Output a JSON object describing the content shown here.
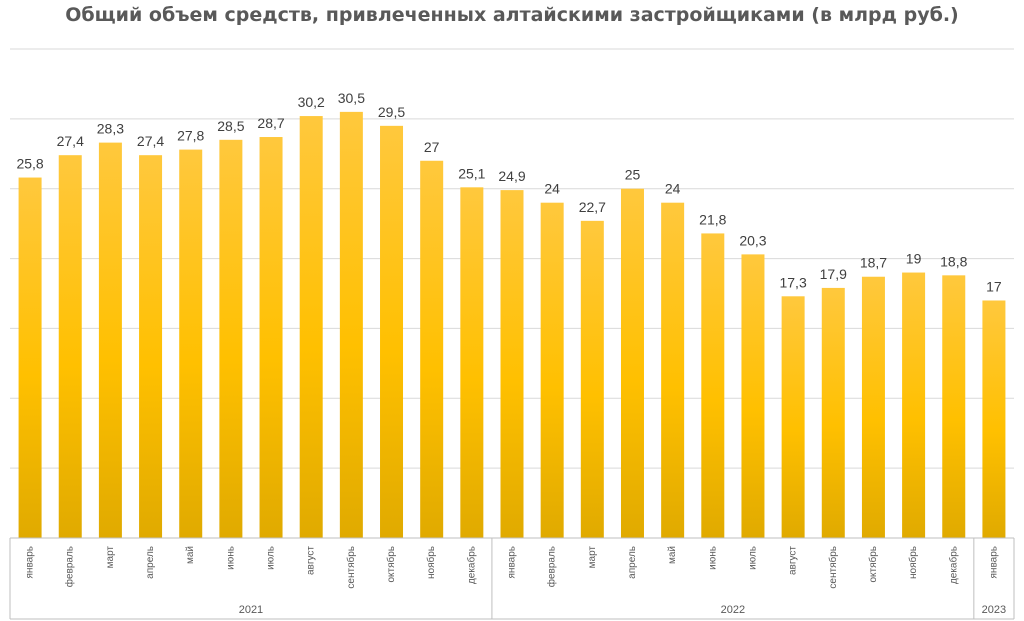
{
  "chart_data": {
    "type": "bar",
    "title": "Общий объем средств, привлеченных алтайскими застройщиками (в млрд руб.)",
    "xlabel": "",
    "ylabel": "",
    "ylim": [
      0,
      35
    ],
    "grid": true,
    "legend": "none",
    "bar_color": "#FFC000",
    "categories": [
      "январь",
      "февраль",
      "март",
      "апрель",
      "май",
      "июнь",
      "июль",
      "август",
      "сентябрь",
      "октябрь",
      "ноябрь",
      "декабрь",
      "январь",
      "февраль",
      "март",
      "апрель",
      "май",
      "июнь",
      "июль",
      "август",
      "сентябрь",
      "октябрь",
      "ноябрь",
      "декабрь",
      "январь"
    ],
    "values": [
      25.8,
      27.4,
      28.3,
      27.4,
      27.8,
      28.5,
      28.7,
      30.2,
      30.5,
      29.5,
      27,
      25.1,
      24.9,
      24,
      22.7,
      25,
      24,
      21.8,
      20.3,
      17.3,
      17.9,
      18.7,
      19,
      18.8,
      17
    ],
    "value_labels": [
      "25,8",
      "27,4",
      "28,3",
      "27,4",
      "27,8",
      "28,5",
      "28,7",
      "30,2",
      "30,5",
      "29,5",
      "27",
      "25,1",
      "24,9",
      "24",
      "22,7",
      "25",
      "24",
      "21,8",
      "20,3",
      "17,3",
      "17,9",
      "18,7",
      "19",
      "18,8",
      "17"
    ],
    "groups": [
      {
        "label": "2021",
        "count": 12
      },
      {
        "label": "2022",
        "count": 12
      },
      {
        "label": "2023",
        "count": 1
      }
    ]
  }
}
